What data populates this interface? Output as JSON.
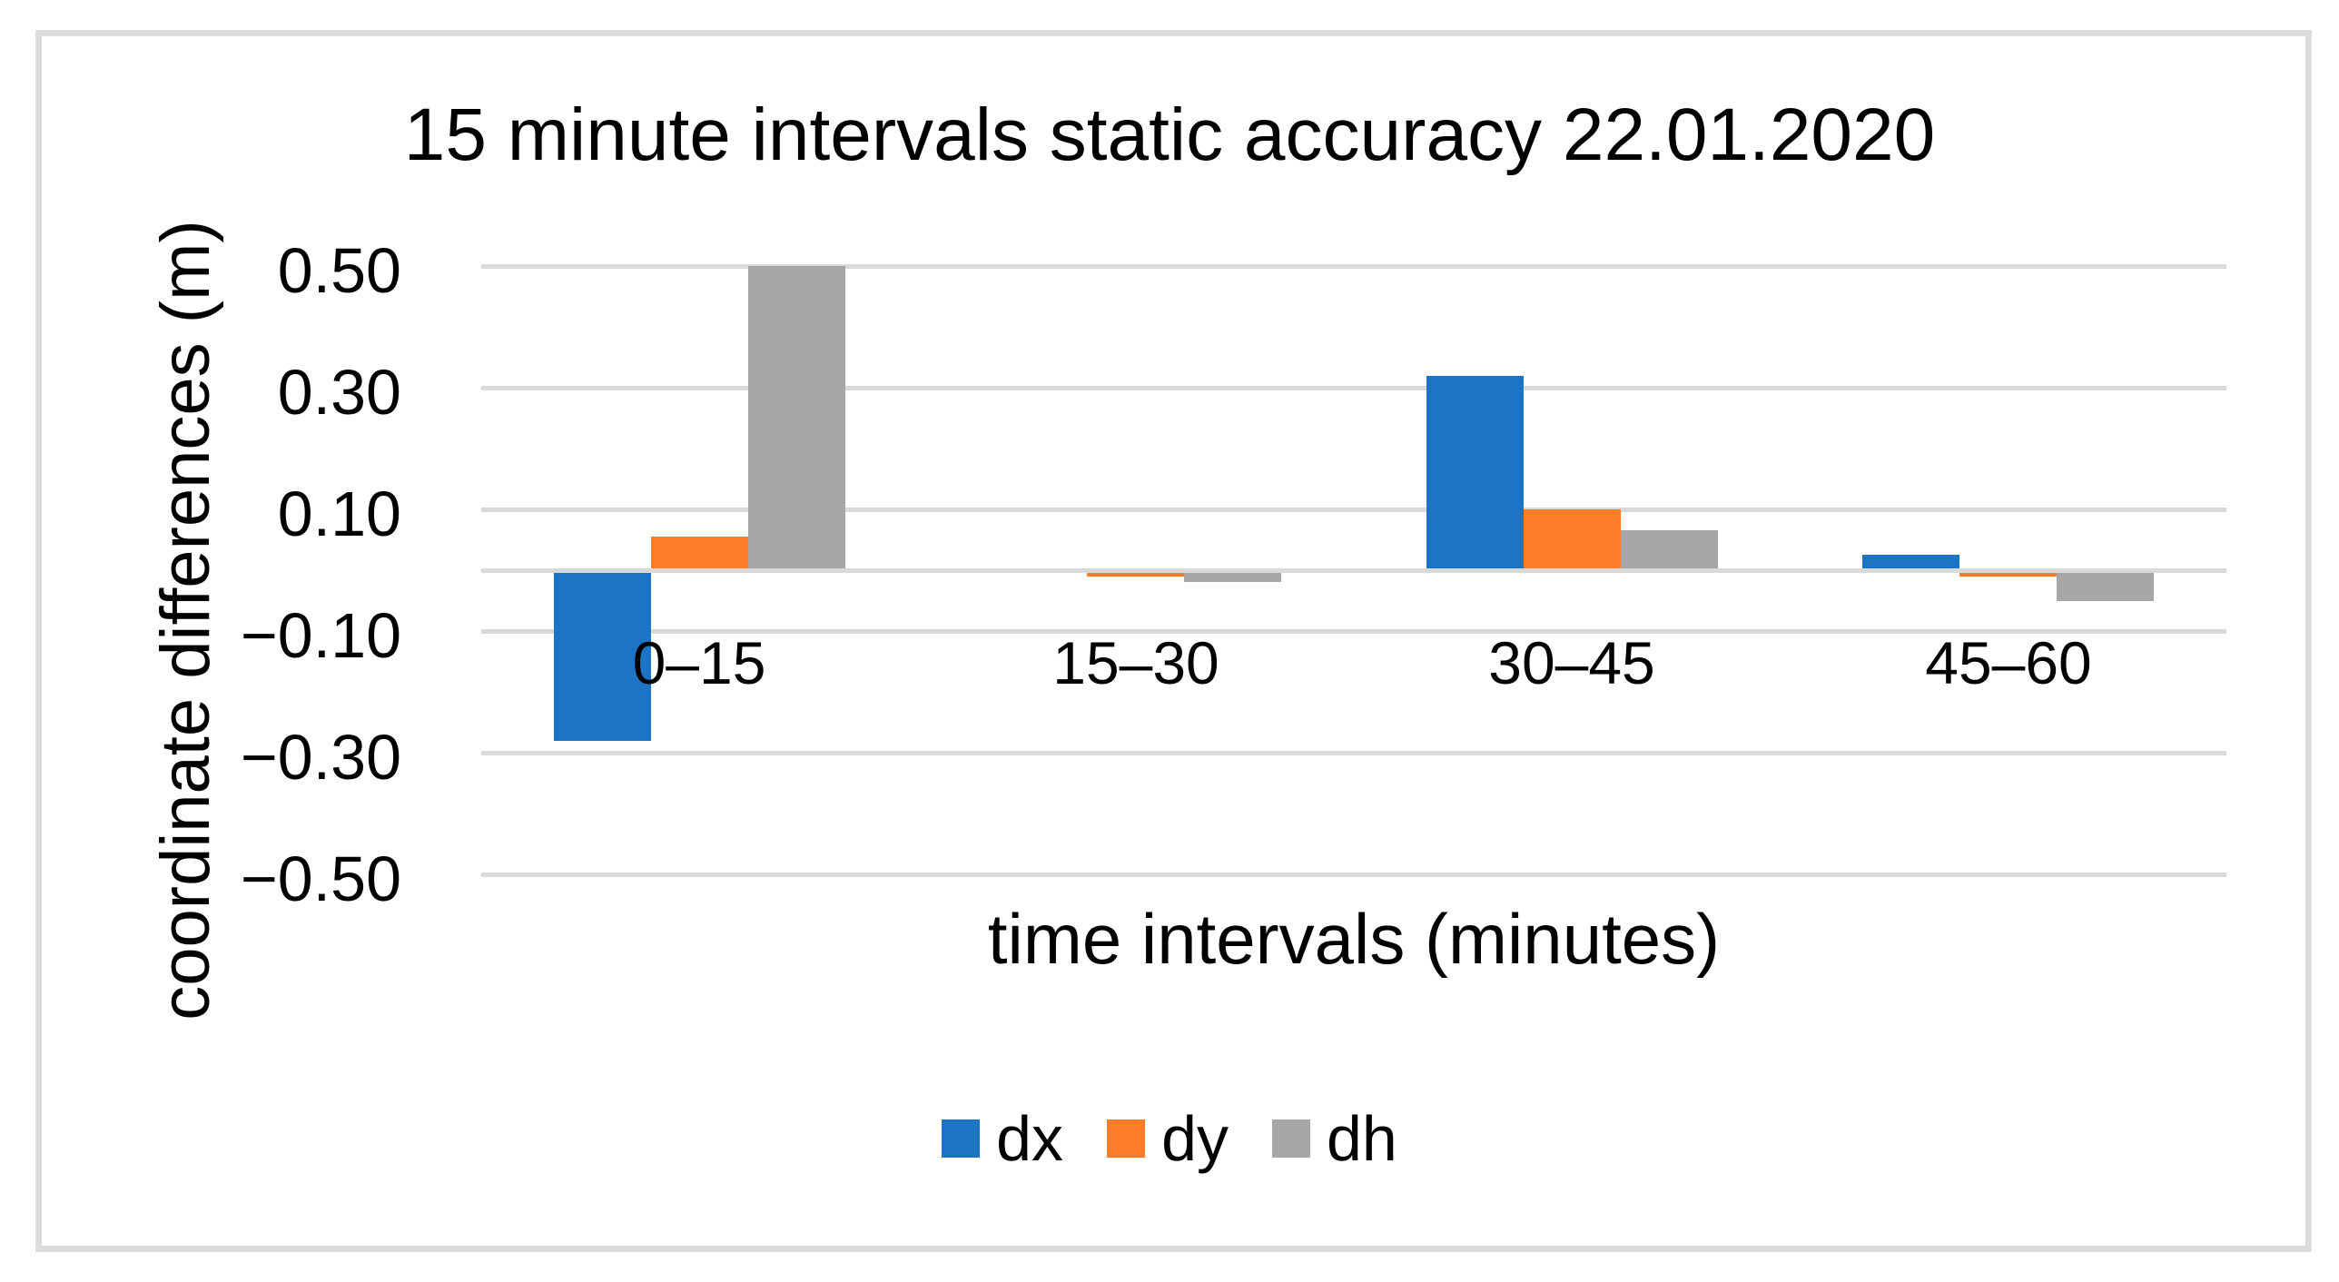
{
  "chart_data": {
    "type": "bar",
    "title": "15 minute intervals static accuracy 22.01.2020",
    "xlabel": "time intervals (minutes)",
    "ylabel": "coordinate differences (m)",
    "categories": [
      "0–15",
      "15–30",
      "30–45",
      "45–60"
    ],
    "series": [
      {
        "name": "dx",
        "color": "#1C74C4",
        "values": [
          -0.28,
          0,
          0.32,
          0.025
        ]
      },
      {
        "name": "dy",
        "color": "#FD7E2A",
        "values": [
          0.055,
          -0.01,
          0.1,
          -0.01
        ]
      },
      {
        "name": "dh",
        "color": "#A7A7A7",
        "values": [
          0.5,
          -0.02,
          0.065,
          -0.05
        ]
      }
    ],
    "ylim": [
      -0.5,
      0.5
    ],
    "ytick_values": [
      0.5,
      0.3,
      0.1,
      -0.1,
      -0.3,
      -0.5
    ],
    "ytick_labels": [
      "0.50",
      "0.30",
      "0.10",
      "−0.10",
      "−0.30",
      "−0.50"
    ],
    "gridline_values": [
      0.5,
      0.3,
      0.1,
      0,
      -0.1,
      -0.3,
      -0.5
    ],
    "grid": true,
    "legend_position": "bottom",
    "colors": {
      "gridline": "#D9D9D9",
      "figure_border": "#DCDCDC",
      "text": "#000000",
      "background": "#FFFFFF"
    }
  }
}
